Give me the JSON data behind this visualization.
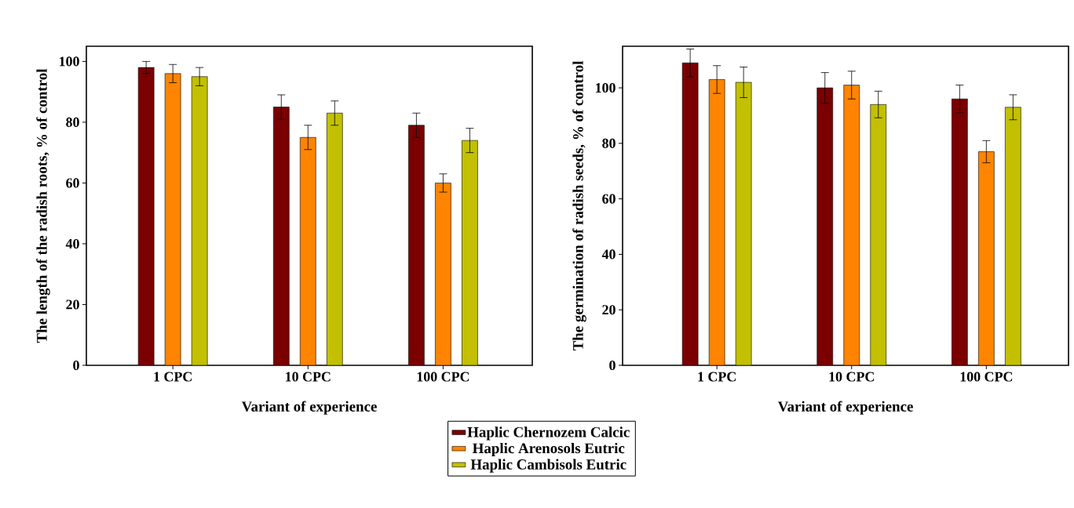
{
  "chart_data": [
    {
      "type": "bar",
      "categories": [
        "1 CPC",
        "10 CPC",
        "100 CPC"
      ],
      "xlabel": "Variant of experience",
      "ylabel": "The length of the radish roots, % of control",
      "ylim": [
        0,
        105
      ],
      "yticks": [
        0,
        20,
        40,
        60,
        80,
        100
      ],
      "legend": "bottom",
      "series": [
        {
          "name": "Haplic Chernozem Calcic",
          "color": "#7b0000",
          "values": [
            98,
            85,
            79
          ],
          "errors": [
            2,
            4,
            4
          ]
        },
        {
          "name": "Haplic Arenosols Eutric",
          "color": "#ff8400",
          "values": [
            96,
            75,
            60
          ],
          "errors": [
            3,
            4,
            3
          ]
        },
        {
          "name": "Haplic Cambisols Eutric",
          "color": "#c2c000",
          "values": [
            95,
            83,
            74
          ],
          "errors": [
            3,
            4,
            4
          ]
        }
      ]
    },
    {
      "type": "bar",
      "categories": [
        "1 CPC",
        "10 CPC",
        "100 CPC"
      ],
      "xlabel": "Variant of experience",
      "ylabel": "The germination of radish seeds, % of control",
      "ylim": [
        0,
        115
      ],
      "yticks": [
        0,
        20,
        40,
        60,
        80,
        100
      ],
      "series": [
        {
          "color": "#7b0000",
          "values": [
            109,
            100,
            96
          ],
          "errors": [
            5,
            5.5,
            5
          ]
        },
        {
          "color": "#ff8400",
          "values": [
            103,
            101,
            77
          ],
          "errors": [
            5,
            5,
            4
          ]
        },
        {
          "color": "#c2c000",
          "values": [
            102,
            94,
            93
          ],
          "errors": [
            5.5,
            4.8,
            4.5
          ]
        }
      ]
    }
  ]
}
